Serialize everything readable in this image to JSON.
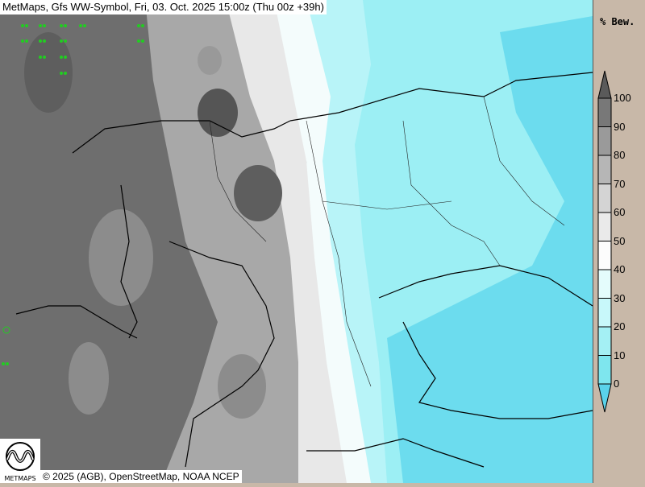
{
  "header": {
    "title": "MetMaps, Gfs WW-Symbol, Fri, 03. Oct. 2025 15:00z (Thu 00z +39h)"
  },
  "legend": {
    "title": "% Bew.",
    "ticks": [
      "100",
      "90",
      "80",
      "70",
      "60",
      "50",
      "40",
      "30",
      "20",
      "10",
      "0"
    ],
    "colors": {
      "above_100": "#5a5a5a",
      "90-100": "#787878",
      "80-90": "#9a9a9a",
      "70-80": "#b6b6b6",
      "60-70": "#d4d4d4",
      "50-60": "#eaeaea",
      "40-50": "#fcfcfc",
      "30-40": "#e4fcfc",
      "20-30": "#c8f8fa",
      "10-20": "#a4f0f4",
      "0-10": "#7ee6ee",
      "below_0": "#5ad2ea"
    }
  },
  "footer": {
    "logo_text": "METMAPS",
    "copyright": "© 2025 (AGB), OpenStreetMap, NOAA NCEP"
  }
}
